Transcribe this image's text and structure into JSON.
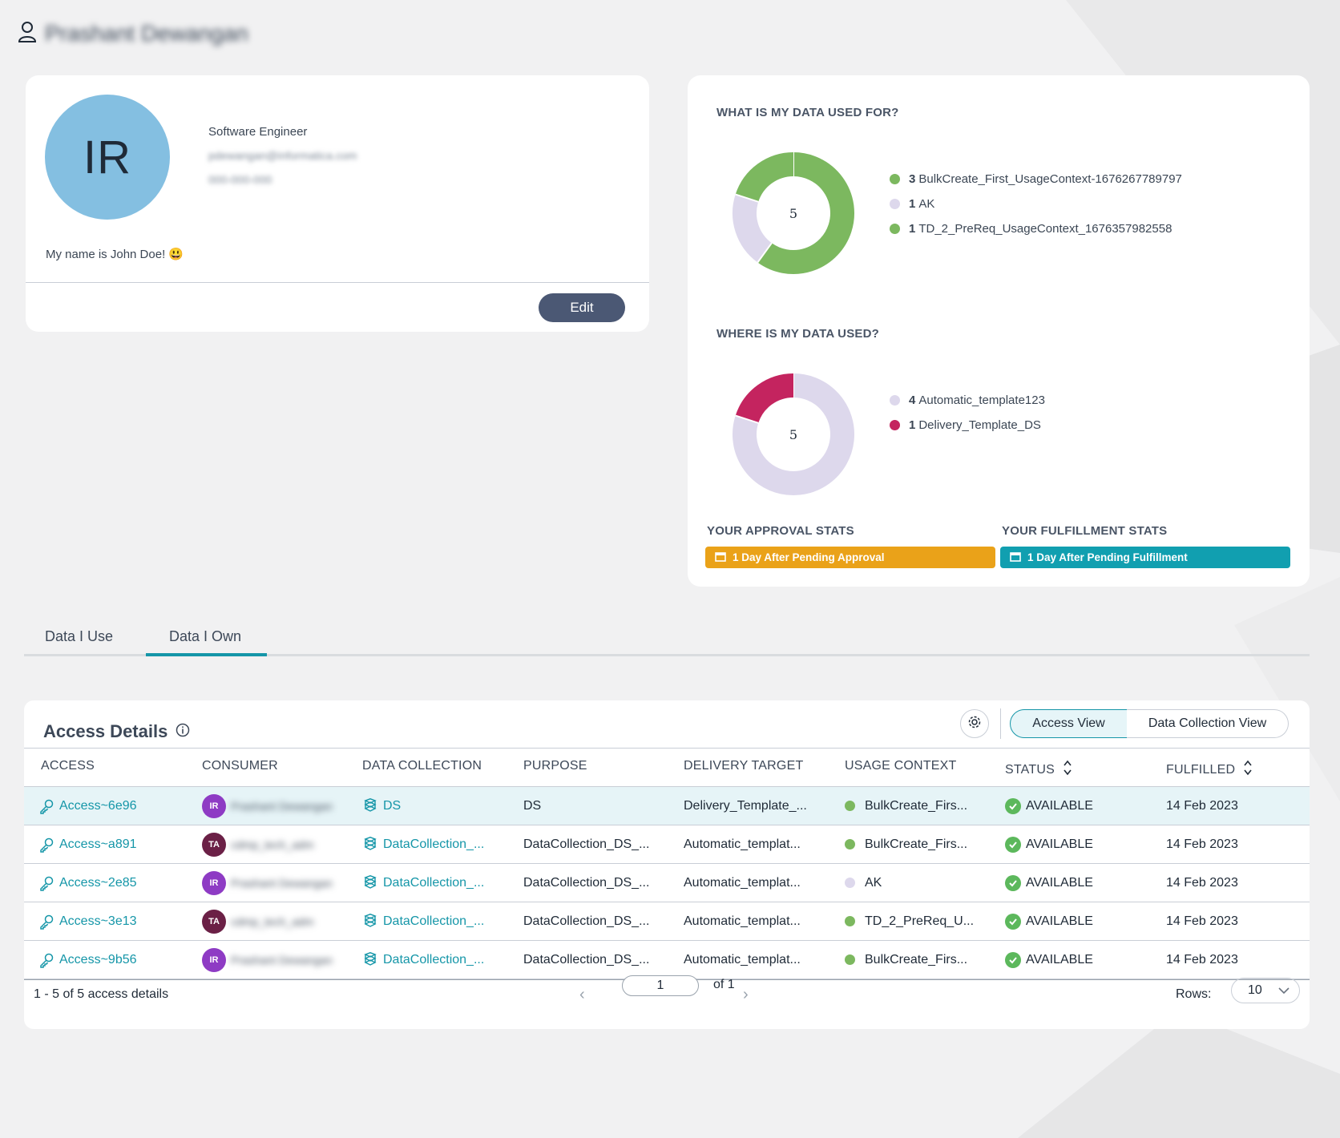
{
  "header": {
    "user_name": "Prashant Dewangan"
  },
  "profile": {
    "initials": "IR",
    "title": "Software Engineer",
    "email": "pdewangan@informatica.com",
    "phone": "000-000-000",
    "bio": "My name is John Doe! 😃",
    "edit_label": "Edit"
  },
  "stats": {
    "used_for_title": "WHAT IS MY DATA USED FOR?",
    "used_for_total": "5",
    "used_for_legend": [
      {
        "count": "3",
        "label": "BulkCreate_First_UsageContext-1676267789797",
        "color": "#7cb85f"
      },
      {
        "count": "1",
        "label": "AK",
        "color": "#ddd8ec"
      },
      {
        "count": "1",
        "label": "TD_2_PreReq_UsageContext_1676357982558",
        "color": "#7cb85f"
      }
    ],
    "used_where_title": "WHERE IS MY DATA USED?",
    "used_where_total": "5",
    "used_where_legend": [
      {
        "count": "4",
        "label": "Automatic_template123",
        "color": "#ddd8ec"
      },
      {
        "count": "1",
        "label": "Delivery_Template_DS",
        "color": "#c4245f"
      }
    ],
    "approval_title": "YOUR APPROVAL STATS",
    "approval_badge": "1 Day After Pending Approval",
    "approval_color": "#eaa219",
    "fulfillment_title": "YOUR FULFILLMENT STATS",
    "fulfillment_badge": "1 Day After Pending Fulfillment",
    "fulfillment_color": "#119fb0"
  },
  "tabs": [
    {
      "label": "Data I Use",
      "active": false
    },
    {
      "label": "Data I Own",
      "active": true
    }
  ],
  "access": {
    "title": "Access Details",
    "view_access": "Access View",
    "view_collection": "Data Collection View",
    "columns": [
      "ACCESS",
      "CONSUMER",
      "DATA COLLECTION",
      "PURPOSE",
      "DELIVERY TARGET",
      "USAGE CONTEXT",
      "STATUS",
      "FULFILLED"
    ],
    "rows": [
      {
        "access": "Access~6e96",
        "consumer_initials": "IR",
        "consumer_color": "#8e3bc4",
        "consumer": "Prashant Dewangan",
        "collection": "DS",
        "purpose": "DS",
        "target": "Delivery_Template_...",
        "context": "BulkCreate_Firs...",
        "context_color": "#7cb85f",
        "status": "AVAILABLE",
        "fulfilled": "14 Feb 2023"
      },
      {
        "access": "Access~a891",
        "consumer_initials": "TA",
        "consumer_color": "#6b2046",
        "consumer": "cdmp_tech_adm",
        "collection": "DataCollection_...",
        "purpose": "DataCollection_DS_...",
        "target": "Automatic_templat...",
        "context": "BulkCreate_Firs...",
        "context_color": "#7cb85f",
        "status": "AVAILABLE",
        "fulfilled": "14 Feb 2023"
      },
      {
        "access": "Access~2e85",
        "consumer_initials": "IR",
        "consumer_color": "#8e3bc4",
        "consumer": "Prashant Dewangan",
        "collection": "DataCollection_...",
        "purpose": "DataCollection_DS_...",
        "target": "Automatic_templat...",
        "context": "AK",
        "context_color": "#ddd8ec",
        "status": "AVAILABLE",
        "fulfilled": "14 Feb 2023"
      },
      {
        "access": "Access~3e13",
        "consumer_initials": "TA",
        "consumer_color": "#6b2046",
        "consumer": "cdmp_tech_adm",
        "collection": "DataCollection_...",
        "purpose": "DataCollection_DS_...",
        "target": "Automatic_templat...",
        "context": "TD_2_PreReq_U...",
        "context_color": "#7cb85f",
        "status": "AVAILABLE",
        "fulfilled": "14 Feb 2023"
      },
      {
        "access": "Access~9b56",
        "consumer_initials": "IR",
        "consumer_color": "#8e3bc4",
        "consumer": "Prashant Dewangan",
        "collection": "DataCollection_...",
        "purpose": "DataCollection_DS_...",
        "target": "Automatic_templat...",
        "context": "BulkCreate_Firs...",
        "context_color": "#7cb85f",
        "status": "AVAILABLE",
        "fulfilled": "14 Feb 2023"
      }
    ],
    "summary": "1 - 5 of 5 access details",
    "page": "1",
    "of_pages": "of 1",
    "rows_label": "Rows:",
    "rows_value": "10"
  }
}
